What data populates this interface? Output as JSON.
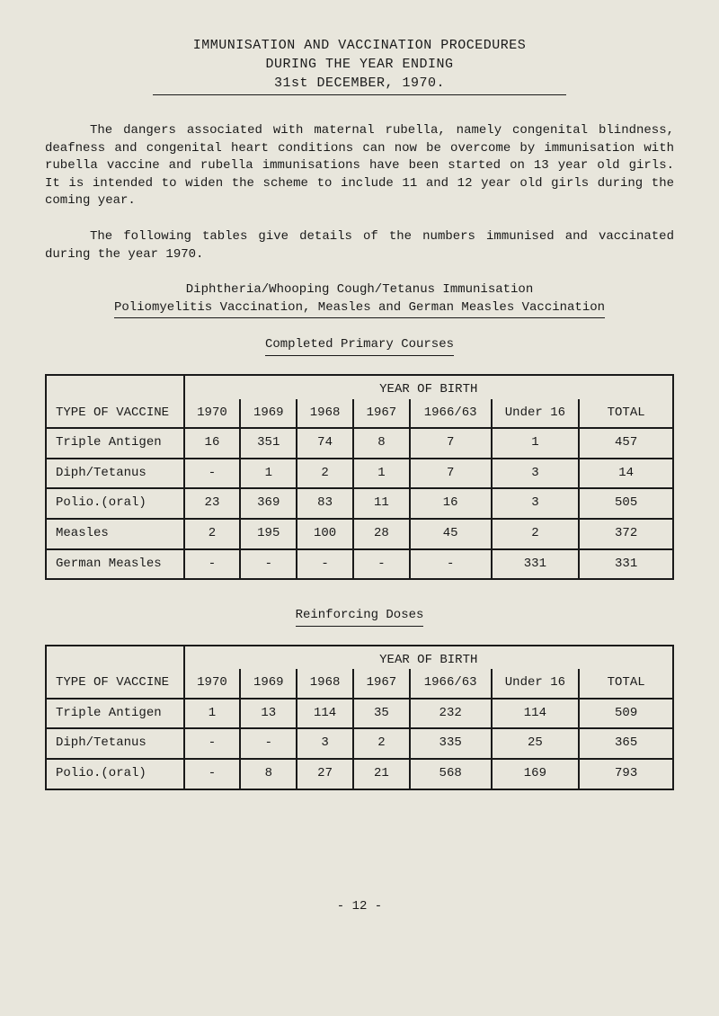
{
  "title": {
    "line1": "IMMUNISATION AND VACCINATION PROCEDURES",
    "line2": "DURING THE YEAR ENDING",
    "line3": "31st DECEMBER, 1970."
  },
  "paragraph1": "The dangers associated with maternal rubella, namely congenital blindness, deafness and congenital heart conditions can now be overcome by immunisation with rubella vaccine and rubella immunisations have been started on 13 year old girls. It is intended to widen the scheme to include 11 and 12 year old girls during the coming year.",
  "paragraph2": "The following tables give details of the numbers immunised and vaccinated during the year 1970.",
  "section1_line1": "Diphtheria/Whooping Cough/Tetanus Immunisation",
  "section1_line2": "Poliomyelitis Vaccination, Measles and German Measles Vaccination",
  "table1_title": "Completed Primary Courses",
  "table2_title": "Reinforcing Doses",
  "table_header": {
    "spanning": "YEAR OF BIRTH",
    "col0": "TYPE OF VACCINE",
    "col1": "1970",
    "col2": "1969",
    "col3": "1968",
    "col4": "1967",
    "col5": "1966/63",
    "col6": "Under 16",
    "col7": "TOTAL"
  },
  "table1": {
    "rows": [
      {
        "label": "Triple Antigen",
        "c1": "16",
        "c2": "351",
        "c3": "74",
        "c4": "8",
        "c5": "7",
        "c6": "1",
        "c7": "457"
      },
      {
        "label": "Diph/Tetanus",
        "c1": "-",
        "c2": "1",
        "c3": "2",
        "c4": "1",
        "c5": "7",
        "c6": "3",
        "c7": "14"
      },
      {
        "label": "Polio.(oral)",
        "c1": "23",
        "c2": "369",
        "c3": "83",
        "c4": "11",
        "c5": "16",
        "c6": "3",
        "c7": "505"
      },
      {
        "label": "Measles",
        "c1": "2",
        "c2": "195",
        "c3": "100",
        "c4": "28",
        "c5": "45",
        "c6": "2",
        "c7": "372"
      },
      {
        "label": "German Measles",
        "c1": "-",
        "c2": "-",
        "c3": "-",
        "c4": "-",
        "c5": "-",
        "c6": "331",
        "c7": "331"
      }
    ]
  },
  "table2": {
    "rows": [
      {
        "label": "Triple Antigen",
        "c1": "1",
        "c2": "13",
        "c3": "114",
        "c4": "35",
        "c5": "232",
        "c6": "114",
        "c7": "509"
      },
      {
        "label": "Diph/Tetanus",
        "c1": "-",
        "c2": "-",
        "c3": "3",
        "c4": "2",
        "c5": "335",
        "c6": "25",
        "c7": "365"
      },
      {
        "label": "Polio.(oral)",
        "c1": "-",
        "c2": "8",
        "c3": "27",
        "c4": "21",
        "c5": "568",
        "c6": "169",
        "c7": "793"
      }
    ]
  },
  "page_number": "- 12 -",
  "colors": {
    "background": "#e8e6dc",
    "text": "#1a1a1a",
    "border": "#1a1a1a"
  },
  "column_widths": [
    "22%",
    "9%",
    "9%",
    "9%",
    "9%",
    "13%",
    "14%",
    "15%"
  ]
}
